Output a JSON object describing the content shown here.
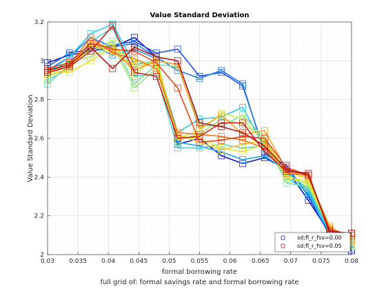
{
  "chart_data": {
    "type": "line",
    "title": "Value Standard Deviation",
    "xlabel": "formal borrowing rate",
    "xlabel2": "full grid of: formal savings rate and formal borrowing rate",
    "ylabel": "Value Standard Deviation",
    "xlim": [
      0.03,
      0.08
    ],
    "ylim": [
      2.0,
      3.2
    ],
    "xticks": [
      "0.03",
      "0.035",
      "0.04",
      "0.045",
      "0.05",
      "0.055",
      "0.06",
      "0.065",
      "0.07",
      "0.075",
      "0.08"
    ],
    "yticks": [
      "2",
      "2.2",
      "2.4",
      "2.6",
      "2.8",
      "3",
      "3.2"
    ],
    "grid": true,
    "x": [
      0.03,
      0.0336,
      0.0371,
      0.0407,
      0.0443,
      0.0479,
      0.0514,
      0.055,
      0.0586,
      0.0621,
      0.0657,
      0.0693,
      0.0729,
      0.0764,
      0.08
    ],
    "legend": {
      "placement": "bottom-right",
      "entries": [
        {
          "label": "sd;fl_r_fsv=0.00",
          "color": "#2020c8"
        },
        {
          "label": "sd;fl_r_fsv=0.05",
          "color": "#c81e1e"
        }
      ]
    },
    "series": [
      {
        "color": "#0a14c8",
        "values": [
          2.99,
          3.03,
          3.05,
          3.07,
          3.12,
          3.02,
          2.57,
          2.6,
          2.51,
          2.47,
          2.5,
          2.44,
          2.28,
          2.11,
          2.02
        ]
      },
      {
        "color": "#1e50e6",
        "values": [
          2.97,
          3.04,
          3.06,
          3.08,
          3.1,
          3.04,
          3.06,
          2.92,
          2.94,
          2.87,
          2.53,
          2.46,
          2.3,
          2.1,
          2.03
        ]
      },
      {
        "color": "#1e78e6",
        "values": [
          2.95,
          3.02,
          3.12,
          3.07,
          3.09,
          3.02,
          2.95,
          2.91,
          2.95,
          2.88,
          2.52,
          2.45,
          2.31,
          2.12,
          2.04
        ]
      },
      {
        "color": "#1ea0f0",
        "values": [
          2.93,
          3.0,
          3.08,
          3.03,
          3.06,
          3.01,
          2.58,
          2.56,
          2.53,
          2.49,
          2.51,
          2.43,
          2.33,
          2.11,
          2.05
        ]
      },
      {
        "color": "#28c8e6",
        "values": [
          2.94,
          3.02,
          3.14,
          3.19,
          2.98,
          3.0,
          2.63,
          2.7,
          2.71,
          2.76,
          2.55,
          2.4,
          2.32,
          2.11,
          2.06
        ]
      },
      {
        "color": "#50d2c8",
        "values": [
          2.9,
          2.96,
          3.1,
          3.17,
          2.92,
          2.93,
          2.55,
          2.55,
          2.57,
          2.55,
          2.56,
          2.42,
          2.34,
          2.12,
          2.04
        ]
      },
      {
        "color": "#78dca0",
        "values": [
          2.88,
          2.98,
          3.06,
          3.1,
          2.88,
          2.98,
          2.97,
          2.67,
          2.66,
          2.72,
          2.6,
          2.37,
          2.35,
          2.13,
          2.06
        ]
      },
      {
        "color": "#a0e678",
        "values": [
          2.91,
          3.0,
          3.02,
          3.08,
          2.86,
          2.96,
          2.59,
          2.62,
          2.7,
          2.67,
          2.61,
          2.39,
          2.37,
          2.12,
          2.07
        ]
      },
      {
        "color": "#c8f050",
        "values": [
          2.93,
          2.99,
          3.05,
          3.09,
          2.93,
          3.02,
          2.6,
          2.64,
          2.73,
          2.7,
          2.58,
          2.41,
          2.36,
          2.14,
          2.05
        ]
      },
      {
        "color": "#e6e628",
        "values": [
          2.95,
          2.94,
          3.0,
          3.07,
          3.0,
          2.98,
          2.61,
          2.6,
          2.55,
          2.53,
          2.57,
          2.4,
          2.38,
          2.13,
          2.08
        ]
      },
      {
        "color": "#f5c81e",
        "values": [
          2.92,
          2.96,
          3.08,
          3.05,
          2.97,
          2.99,
          2.62,
          2.58,
          2.54,
          2.57,
          2.59,
          2.43,
          2.39,
          2.15,
          2.07
        ]
      },
      {
        "color": "#f5a01e",
        "values": [
          2.94,
          2.97,
          3.1,
          3.06,
          2.95,
          3.0,
          2.98,
          2.65,
          2.72,
          2.62,
          2.64,
          2.44,
          2.4,
          2.14,
          2.09
        ]
      },
      {
        "color": "#f0781e",
        "values": [
          2.95,
          2.98,
          3.12,
          3.04,
          3.01,
          2.96,
          2.63,
          2.62,
          2.61,
          2.59,
          2.55,
          2.42,
          2.41,
          2.13,
          2.08
        ]
      },
      {
        "color": "#e6461e",
        "values": [
          2.96,
          2.99,
          3.09,
          3.06,
          3.05,
          2.99,
          2.86,
          2.58,
          2.59,
          2.61,
          2.6,
          2.45,
          2.41,
          2.13,
          2.1
        ]
      },
      {
        "color": "#d21e1e",
        "values": [
          2.94,
          2.97,
          3.05,
          3.18,
          2.94,
          2.92,
          2.6,
          2.61,
          2.68,
          2.68,
          2.53,
          2.43,
          2.42,
          2.11,
          2.11
        ]
      },
      {
        "color": "#b41414",
        "values": [
          2.95,
          2.98,
          3.07,
          2.96,
          3.07,
          3.02,
          3.0,
          2.68,
          2.66,
          2.63,
          2.56,
          2.44,
          2.41,
          2.12,
          2.11
        ]
      }
    ]
  }
}
